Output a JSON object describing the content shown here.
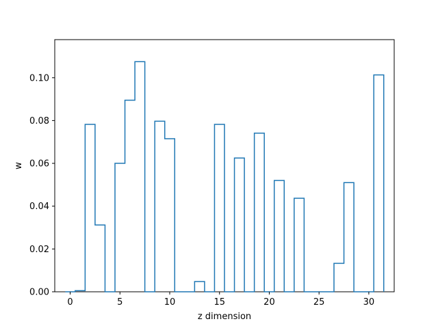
{
  "chart_data": {
    "type": "bar",
    "style": "step-histogram",
    "xlabel": "z dimension",
    "ylabel": "w",
    "xlim": [
      -1.55,
      32.55
    ],
    "ylim": [
      0,
      0.1178
    ],
    "xticks": [
      0,
      5,
      10,
      15,
      20,
      25,
      30
    ],
    "yticks": [
      0.0,
      0.02,
      0.04,
      0.06,
      0.08,
      0.1
    ],
    "ytick_labels": [
      "0.00",
      "0.02",
      "0.04",
      "0.06",
      "0.08",
      "0.10"
    ],
    "grid": false,
    "x": [
      0,
      1,
      2,
      3,
      4,
      5,
      6,
      7,
      8,
      9,
      10,
      11,
      12,
      13,
      14,
      15,
      16,
      17,
      18,
      19,
      20,
      21,
      22,
      23,
      24,
      25,
      26,
      27,
      28,
      29,
      30,
      31
    ],
    "values": [
      0,
      0.0005,
      0.0782,
      0.0312,
      0,
      0.06,
      0.0895,
      0.1075,
      0,
      0.0797,
      0.0715,
      0,
      0,
      0.0048,
      0,
      0.0782,
      0,
      0.0625,
      0,
      0.0741,
      0,
      0.052,
      0,
      0.0437,
      0,
      0,
      0,
      0.0133,
      0.051,
      0,
      0,
      0.1013
    ],
    "line_color": "#1f77b4"
  }
}
